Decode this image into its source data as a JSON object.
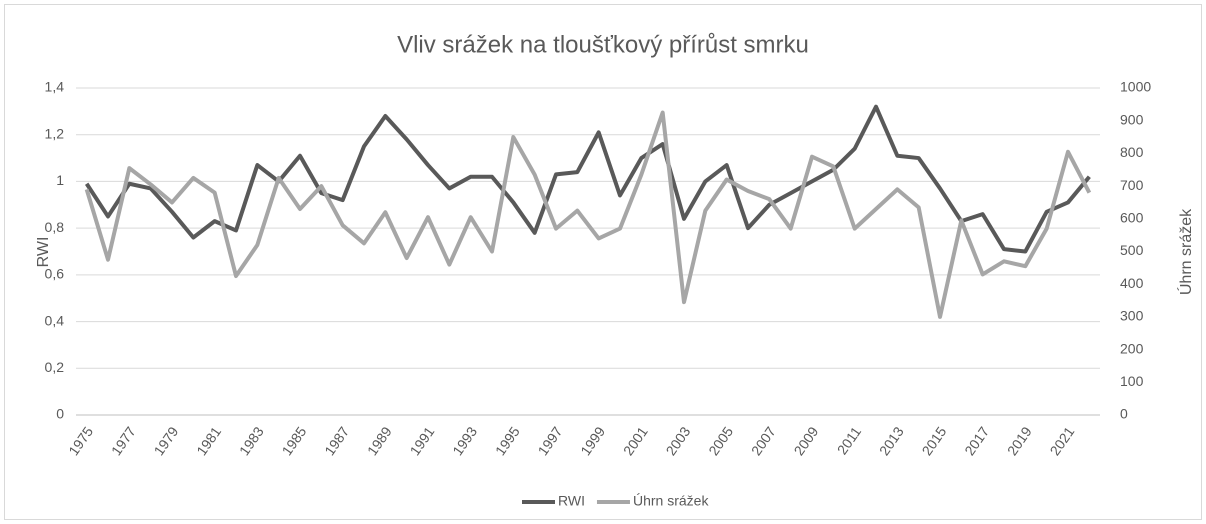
{
  "chart_data": {
    "type": "line",
    "title": "Vliv srážek na tloušťkový přírůst smrku",
    "y_label": "RWI",
    "y2_label": "Úhrn srážek",
    "categories": [
      "1975",
      null,
      "1977",
      null,
      "1979",
      null,
      "1981",
      null,
      "1983",
      null,
      "1985",
      null,
      "1987",
      null,
      "1989",
      null,
      "1991",
      null,
      "1993",
      null,
      "1995",
      null,
      "1997",
      null,
      "1999",
      null,
      "2001",
      null,
      "2003",
      null,
      "2005",
      null,
      "2007",
      null,
      "2009",
      null,
      "2011",
      null,
      "2013",
      null,
      "2015",
      null,
      "2017",
      null,
      "2019",
      null,
      "2021",
      null
    ],
    "series": [
      {
        "name": "RWI",
        "color": "#595959",
        "values": [
          0.99,
          0.85,
          0.99,
          0.97,
          0.87,
          0.76,
          0.83,
          0.79,
          1.07,
          1.0,
          1.11,
          0.95,
          0.92,
          1.15,
          1.28,
          1.18,
          1.07,
          0.97,
          1.02,
          1.02,
          0.91,
          0.78,
          1.03,
          1.04,
          1.21,
          0.94,
          1.1,
          1.16,
          0.84,
          1.0,
          1.07,
          0.8,
          0.9,
          0.95,
          1.0,
          1.05,
          1.14,
          1.32,
          1.11,
          1.1,
          0.97,
          0.83,
          0.86,
          0.71,
          0.7,
          0.87,
          0.91,
          1.02
        ]
      },
      {
        "name": "Úhrn srážek",
        "color": "#a6a6a6",
        "axis": "y2",
        "values": [
          690,
          475,
          755,
          705,
          650,
          725,
          680,
          425,
          520,
          725,
          630,
          700,
          580,
          525,
          620,
          480,
          605,
          460,
          605,
          500,
          850,
          735,
          570,
          625,
          540,
          570,
          735,
          925,
          345,
          625,
          720,
          685,
          660,
          570,
          790,
          760,
          570,
          630,
          690,
          635,
          300,
          595,
          430,
          470,
          455,
          570,
          805,
          680
        ]
      }
    ],
    "ylim": [
      0,
      1.4
    ],
    "yticks": [
      0,
      {
        "value": 0.2,
        "label": "0,2"
      },
      {
        "value": 0.4,
        "label": "0,4"
      },
      {
        "value": 0.6,
        "label": "0,6"
      },
      {
        "value": 0.8,
        "label": "0,8"
      },
      1,
      {
        "value": 1.2,
        "label": "1,2"
      },
      {
        "value": 1.4,
        "label": "1,4"
      }
    ],
    "y2lim": [
      0,
      1000
    ],
    "y2ticks": [
      0,
      100,
      200,
      300,
      400,
      500,
      600,
      700,
      800,
      900,
      1000
    ],
    "grid": true,
    "legend": "bottom"
  }
}
